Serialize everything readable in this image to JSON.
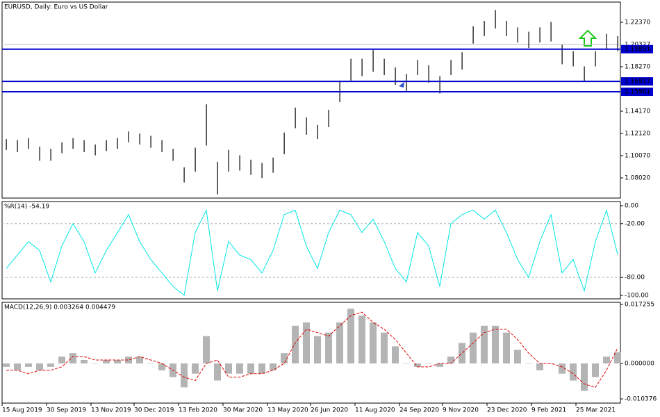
{
  "chart_data": [
    {
      "type": "ohlc",
      "title": "EURUSD, Daily:  Euro vs US Dollar",
      "color": "#000000",
      "x": [
        3,
        11,
        19,
        27,
        35,
        43,
        51,
        59,
        67,
        75,
        83,
        91,
        99,
        107,
        115,
        123,
        131,
        139,
        147,
        155,
        163,
        171,
        179,
        187,
        195,
        203,
        211,
        219,
        227,
        235,
        243,
        251,
        259,
        267,
        275,
        283,
        291,
        299,
        307,
        315,
        323,
        331,
        339,
        347,
        355,
        363,
        371,
        379,
        387,
        395,
        403,
        411,
        419,
        427,
        435,
        443
      ],
      "highs": [
        1.116,
        1.115,
        1.117,
        1.109,
        1.107,
        1.113,
        1.117,
        1.115,
        1.111,
        1.115,
        1.117,
        1.123,
        1.121,
        1.119,
        1.115,
        1.107,
        1.09,
        1.108,
        1.148,
        1.095,
        1.106,
        1.101,
        1.097,
        1.094,
        1.099,
        1.122,
        1.145,
        1.136,
        1.129,
        1.143,
        1.17,
        1.19,
        1.19,
        1.198,
        1.19,
        1.182,
        1.176,
        1.189,
        1.184,
        1.174,
        1.189,
        1.196,
        1.22,
        1.225,
        1.235,
        1.225,
        1.219,
        1.215,
        1.219,
        1.224,
        1.203,
        1.197,
        1.183,
        1.197,
        1.213,
        1.211
      ],
      "lows": [
        1.106,
        1.104,
        1.107,
        1.096,
        1.096,
        1.103,
        1.107,
        1.104,
        1.101,
        1.105,
        1.107,
        1.113,
        1.111,
        1.108,
        1.104,
        1.096,
        1.076,
        1.086,
        1.11,
        1.065,
        1.086,
        1.087,
        1.083,
        1.08,
        1.085,
        1.102,
        1.126,
        1.12,
        1.116,
        1.127,
        1.15,
        1.17,
        1.174,
        1.178,
        1.175,
        1.166,
        1.16,
        1.175,
        1.168,
        1.158,
        1.175,
        1.18,
        1.204,
        1.211,
        1.218,
        1.211,
        1.205,
        1.2,
        1.205,
        1.206,
        1.185,
        1.183,
        1.169,
        1.183,
        1.199,
        1.197
      ],
      "xlim": [
        0,
        445
      ],
      "xticks": [
        {
          "value": 0,
          "label": "15 Aug 2019"
        },
        {
          "value": 32,
          "label": "30 Sep 2019"
        },
        {
          "value": 64,
          "label": "13 Nov 2019"
        },
        {
          "value": 95,
          "label": "30 Dec 2019"
        },
        {
          "value": 127,
          "label": "13 Feb 2020"
        },
        {
          "value": 159,
          "label": "30 Mar 2020"
        },
        {
          "value": 191,
          "label": "13 May 2020"
        },
        {
          "value": 222,
          "label": "26 Jun 2020"
        },
        {
          "value": 254,
          "label": "11 Aug 2020"
        },
        {
          "value": 286,
          "label": "24 Sep 2020"
        },
        {
          "value": 317,
          "label": "9 Nov 2020"
        },
        {
          "value": 349,
          "label": "23 Dec 2020"
        },
        {
          "value": 381,
          "label": "9 Feb 2021"
        },
        {
          "value": 413,
          "label": "25 Mar 2021"
        }
      ],
      "ylim": [
        1.0616,
        1.2423
      ],
      "yticks": [
        {
          "value": 1.2237,
          "label": "1.22370"
        },
        {
          "value": 1.1827,
          "label": "1.18270"
        },
        {
          "value": 1.1417,
          "label": "1.14170"
        },
        {
          "value": 1.1212,
          "label": "1.12120"
        },
        {
          "value": 1.1007,
          "label": "1.10070"
        },
        {
          "value": 1.0802,
          "label": "1.08020"
        }
      ],
      "current_price": {
        "value": 1.20327,
        "label": "1.20327"
      },
      "levels": [
        {
          "value": 1.19891,
          "label": "1.19891"
        },
        {
          "value": 1.16917,
          "label": "1.16917"
        },
        {
          "value": 1.15961,
          "label": "1.15961"
        }
      ],
      "level_color": "#0000cc"
    },
    {
      "type": "line",
      "title": "%R(14) -54.19",
      "color": "#00e5e5",
      "x": [
        3,
        11,
        19,
        27,
        35,
        43,
        51,
        59,
        67,
        75,
        83,
        91,
        99,
        107,
        115,
        123,
        131,
        139,
        147,
        155,
        163,
        171,
        179,
        187,
        195,
        203,
        211,
        219,
        227,
        235,
        243,
        251,
        259,
        267,
        275,
        283,
        291,
        299,
        307,
        315,
        323,
        331,
        339,
        347,
        355,
        363,
        371,
        379,
        387,
        395,
        403,
        411,
        419,
        427,
        435,
        443
      ],
      "values": [
        -70,
        -55,
        -40,
        -50,
        -85,
        -45,
        -20,
        -40,
        -75,
        -50,
        -30,
        -10,
        -40,
        -60,
        -75,
        -90,
        -100,
        -30,
        -5,
        -95,
        -40,
        -55,
        -60,
        -75,
        -50,
        -10,
        -5,
        -45,
        -70,
        -30,
        -5,
        -10,
        -30,
        -15,
        -40,
        -70,
        -85,
        -30,
        -45,
        -90,
        -20,
        -10,
        -5,
        -15,
        -5,
        -30,
        -60,
        -80,
        -40,
        -10,
        -75,
        -60,
        -95,
        -40,
        -5,
        -54.19
      ],
      "xlim": [
        0,
        445
      ],
      "ylim": [
        -103.9,
        4.65
      ],
      "yticks": [
        {
          "value": 0,
          "label": "0.00"
        },
        {
          "value": -20,
          "label": "-20.00"
        },
        {
          "value": -80,
          "label": "-80.00"
        },
        {
          "value": -100,
          "label": "-100.00"
        }
      ],
      "levels": [
        -20,
        -80
      ]
    },
    {
      "type": "macd",
      "title": "MACD(12,26,9) 0.003264 0.004479",
      "color": "#b4b4b4",
      "signal_color": "#e00000",
      "x": [
        3,
        11,
        19,
        27,
        35,
        43,
        51,
        59,
        67,
        75,
        83,
        91,
        99,
        107,
        115,
        123,
        131,
        139,
        147,
        155,
        163,
        171,
        179,
        187,
        195,
        203,
        211,
        219,
        227,
        235,
        243,
        251,
        259,
        267,
        275,
        283,
        291,
        299,
        307,
        315,
        323,
        331,
        339,
        347,
        355,
        363,
        371,
        379,
        387,
        395,
        403,
        411,
        419,
        427,
        435,
        443
      ],
      "values": [
        -0.001,
        -0.002,
        -0.001,
        -0.002,
        -0.001,
        0.002,
        0.003,
        0.001,
        0.0,
        0.001,
        0.001,
        0.002,
        0.002,
        0.0,
        -0.002,
        -0.004,
        -0.007,
        -0.003,
        0.008,
        -0.005,
        -0.003,
        -0.003,
        -0.003,
        -0.003,
        -0.002,
        0.003,
        0.011,
        0.012,
        0.008,
        0.009,
        0.012,
        0.016,
        0.014,
        0.012,
        0.009,
        0.005,
        0.0,
        -0.001,
        0.0,
        -0.001,
        0.002,
        0.006,
        0.009,
        0.011,
        0.011,
        0.009,
        0.004,
        0.0,
        -0.002,
        0.0,
        -0.003,
        -0.005,
        -0.008,
        -0.004,
        0.002,
        0.003264
      ],
      "signal": [
        -0.002,
        -0.002,
        -0.003,
        -0.002,
        -0.002,
        -0.001,
        0.002,
        0.002,
        0.001,
        0.001,
        0.001,
        0.001,
        0.002,
        0.001,
        0.0,
        -0.002,
        -0.004,
        -0.005,
        0.0,
        0.001,
        -0.004,
        -0.004,
        -0.003,
        -0.003,
        -0.002,
        0.0,
        0.006,
        0.01,
        0.009,
        0.008,
        0.011,
        0.014,
        0.015,
        0.012,
        0.01,
        0.007,
        0.003,
        -0.001,
        -0.001,
        0.0,
        0.0,
        0.003,
        0.006,
        0.009,
        0.01,
        0.01,
        0.007,
        0.003,
        0.0,
        0.0,
        -0.001,
        -0.003,
        -0.006,
        -0.007,
        -0.002,
        0.004479
      ],
      "xlim": [
        0,
        445
      ],
      "ylim": [
        -0.011595,
        0.017865
      ],
      "yticks": [
        {
          "value": 0.017255,
          "label": "0.017255"
        },
        {
          "value": 0,
          "label": "0.000000"
        },
        {
          "value": -0.010376,
          "label": "-0.010376"
        }
      ]
    }
  ]
}
